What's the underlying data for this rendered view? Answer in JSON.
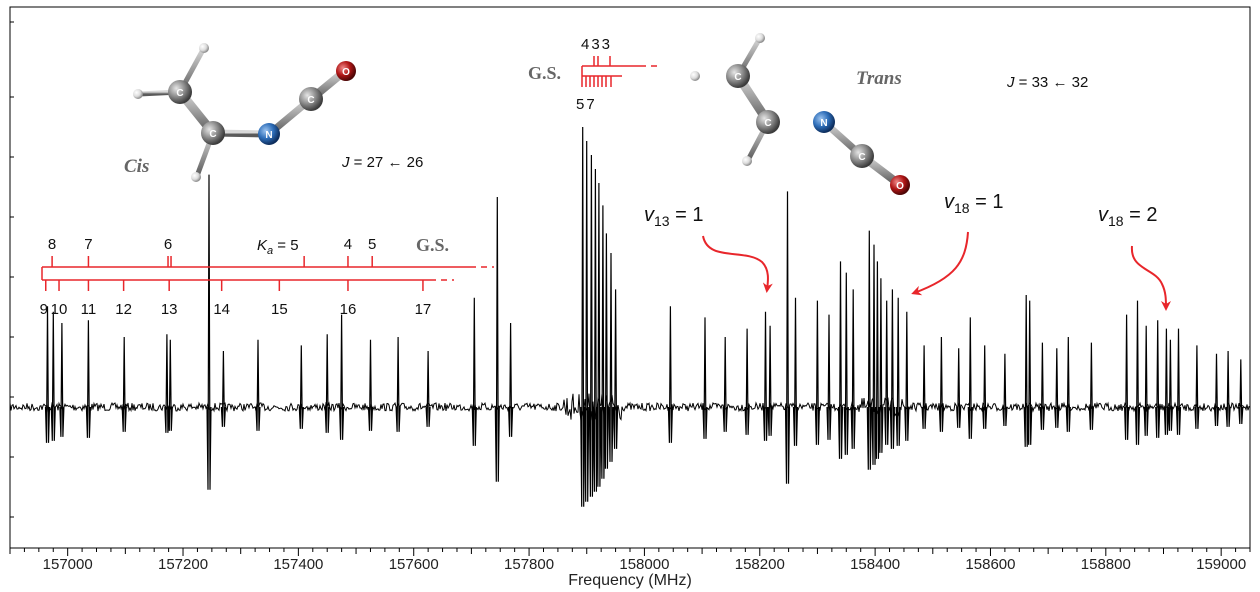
{
  "chart_data": {
    "type": "line",
    "xlabel": "Frequency (MHz)",
    "ylabel": "",
    "xlim": [
      156900,
      159050
    ],
    "ylim": [
      -1,
      1
    ],
    "x_ticks": [
      157000,
      157200,
      157400,
      157600,
      157800,
      158000,
      158200,
      158400,
      158600,
      158800,
      159000
    ],
    "x_tick_labels": [
      "157000",
      "157200",
      "157400",
      "157600",
      "157800",
      "158000",
      "158200",
      "158400",
      "158600",
      "158800",
      "159000"
    ],
    "grid": false,
    "series": [
      {
        "peaks": [
          {
            "x": 156965,
            "y": 0.36
          },
          {
            "x": 156975,
            "y": 0.34
          },
          {
            "x": 156990,
            "y": 0.3
          },
          {
            "x": 157036,
            "y": 0.31
          },
          {
            "x": 157098,
            "y": 0.25
          },
          {
            "x": 157172,
            "y": 0.26
          },
          {
            "x": 157178,
            "y": 0.24
          },
          {
            "x": 157245,
            "y": 0.83
          },
          {
            "x": 157270,
            "y": 0.2
          },
          {
            "x": 157330,
            "y": 0.24
          },
          {
            "x": 157405,
            "y": 0.22
          },
          {
            "x": 157450,
            "y": 0.26
          },
          {
            "x": 157475,
            "y": 0.33
          },
          {
            "x": 157525,
            "y": 0.24
          },
          {
            "x": 157573,
            "y": 0.25
          },
          {
            "x": 157625,
            "y": 0.2
          },
          {
            "x": 157705,
            "y": 0.39
          },
          {
            "x": 157745,
            "y": 0.75
          },
          {
            "x": 157768,
            "y": 0.3
          },
          {
            "x": 157893,
            "y": 1.0
          },
          {
            "x": 157900,
            "y": 0.95
          },
          {
            "x": 157908,
            "y": 0.9
          },
          {
            "x": 157915,
            "y": 0.85
          },
          {
            "x": 157921,
            "y": 0.8
          },
          {
            "x": 157928,
            "y": 0.72
          },
          {
            "x": 157934,
            "y": 0.62
          },
          {
            "x": 157942,
            "y": 0.55
          },
          {
            "x": 157950,
            "y": 0.42
          },
          {
            "x": 158045,
            "y": 0.36
          },
          {
            "x": 158105,
            "y": 0.32
          },
          {
            "x": 158140,
            "y": 0.25
          },
          {
            "x": 158178,
            "y": 0.28
          },
          {
            "x": 158210,
            "y": 0.34
          },
          {
            "x": 158218,
            "y": 0.29
          },
          {
            "x": 158248,
            "y": 0.77
          },
          {
            "x": 158262,
            "y": 0.39
          },
          {
            "x": 158300,
            "y": 0.38
          },
          {
            "x": 158320,
            "y": 0.33
          },
          {
            "x": 158340,
            "y": 0.52
          },
          {
            "x": 158350,
            "y": 0.48
          },
          {
            "x": 158362,
            "y": 0.42
          },
          {
            "x": 158390,
            "y": 0.63
          },
          {
            "x": 158398,
            "y": 0.58
          },
          {
            "x": 158404,
            "y": 0.52
          },
          {
            "x": 158410,
            "y": 0.46
          },
          {
            "x": 158420,
            "y": 0.38
          },
          {
            "x": 158430,
            "y": 0.42
          },
          {
            "x": 158440,
            "y": 0.39
          },
          {
            "x": 158455,
            "y": 0.34
          },
          {
            "x": 158485,
            "y": 0.22
          },
          {
            "x": 158515,
            "y": 0.25
          },
          {
            "x": 158545,
            "y": 0.21
          },
          {
            "x": 158565,
            "y": 0.32
          },
          {
            "x": 158590,
            "y": 0.22
          },
          {
            "x": 158625,
            "y": 0.19
          },
          {
            "x": 158662,
            "y": 0.4
          },
          {
            "x": 158668,
            "y": 0.38
          },
          {
            "x": 158690,
            "y": 0.23
          },
          {
            "x": 158715,
            "y": 0.21
          },
          {
            "x": 158735,
            "y": 0.25
          },
          {
            "x": 158775,
            "y": 0.23
          },
          {
            "x": 158836,
            "y": 0.33
          },
          {
            "x": 158855,
            "y": 0.38
          },
          {
            "x": 158870,
            "y": 0.29
          },
          {
            "x": 158890,
            "y": 0.31
          },
          {
            "x": 158905,
            "y": 0.28
          },
          {
            "x": 158912,
            "y": 0.24
          },
          {
            "x": 158926,
            "y": 0.28
          },
          {
            "x": 158958,
            "y": 0.22
          },
          {
            "x": 158992,
            "y": 0.19
          },
          {
            "x": 159012,
            "y": 0.2
          },
          {
            "x": 159034,
            "y": 0.17
          }
        ]
      }
    ]
  },
  "annotations": {
    "cis_label": "Cis",
    "trans_label": "Trans",
    "j_cis_prefix": "J",
    "j_cis_rest": " = 27 ← 26",
    "j_trans_prefix": "J",
    "j_trans_rest": " = 33 ← 32",
    "gs_cis": "G.S.",
    "gs_trans": "G.S.",
    "ka_symbol": "K",
    "ka_sub": "a",
    "ka_eq": " = 5",
    "cis_upper_labels": [
      {
        "x": 156973,
        "text": "8"
      },
      {
        "x": 157036,
        "text": "7"
      },
      {
        "x": 157174,
        "text": "6"
      },
      {
        "x": 157486,
        "text": "4"
      },
      {
        "x": 157528,
        "text": "5"
      }
    ],
    "cis_lower_labels": [
      {
        "x": 156962,
        "text": "9"
      },
      {
        "x": 156985,
        "text": "10"
      },
      {
        "x": 157036,
        "text": "11"
      },
      {
        "x": 157097,
        "text": "12"
      },
      {
        "x": 157176,
        "text": "13"
      },
      {
        "x": 157267,
        "text": "14"
      },
      {
        "x": 157367,
        "text": "15"
      },
      {
        "x": 157486,
        "text": "16"
      },
      {
        "x": 157616,
        "text": "17"
      }
    ],
    "trans_upper_text": "433",
    "trans_lower_text": "57",
    "v13_sym": "v",
    "v13_sub": "13",
    "v13_val": " = 1",
    "v18a_sym": "v",
    "v18a_sub": "18",
    "v18a_val": " = 1",
    "v18b_sym": "v",
    "v18b_sub": "18",
    "v18b_val": " = 2",
    "atom_c": "C",
    "atom_n": "N",
    "atom_o": "O"
  },
  "colors": {
    "spectrum": "#000000",
    "assignment": "#e8262b",
    "carbon": "#8c8c8c",
    "nitrogen": "#1f5fa8",
    "oxygen": "#a01010",
    "hydrogen": "#e0e0e0"
  }
}
